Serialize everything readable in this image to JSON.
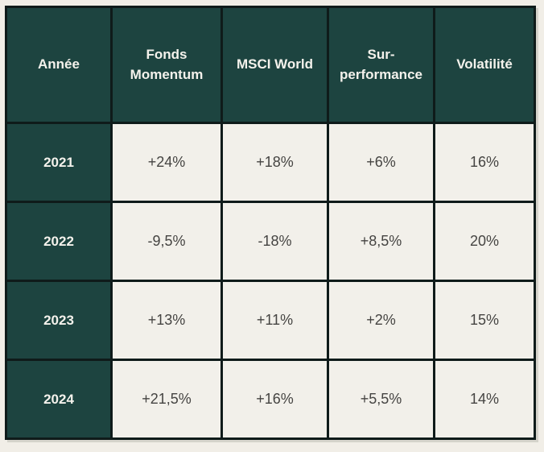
{
  "colors": {
    "header_bg": "#1d4440",
    "header_text": "#f4f2ec",
    "cell_bg": "#f2f0ea",
    "cell_text": "#454442",
    "border": "#0f1b1a",
    "page_bg": "#f1eee7"
  },
  "table": {
    "columns": [
      "Année",
      "Fonds Momentum",
      "MSCI World",
      "Sur-performance",
      "Volatilité"
    ],
    "rows": [
      {
        "year": "2021",
        "values": [
          "+24%",
          "+18%",
          "+6%",
          "16%"
        ]
      },
      {
        "year": "2022",
        "values": [
          "-9,5%",
          "-18%",
          "+8,5%",
          "20%"
        ]
      },
      {
        "year": "2023",
        "values": [
          "+13%",
          "+11%",
          "+2%",
          "15%"
        ]
      },
      {
        "year": "2024",
        "values": [
          "+21,5%",
          "+16%",
          "+5,5%",
          "14%"
        ]
      }
    ]
  },
  "chart_data": {
    "type": "table",
    "title": "",
    "columns": [
      "Année",
      "Fonds Momentum",
      "MSCI World",
      "Sur-performance",
      "Volatilité"
    ],
    "rows": [
      [
        "2021",
        "+24%",
        "+18%",
        "+6%",
        "16%"
      ],
      [
        "2022",
        "-9,5%",
        "-18%",
        "+8,5%",
        "20%"
      ],
      [
        "2023",
        "+13%",
        "+11%",
        "+2%",
        "15%"
      ],
      [
        "2024",
        "+21,5%",
        "+16%",
        "+5,5%",
        "14%"
      ]
    ]
  }
}
